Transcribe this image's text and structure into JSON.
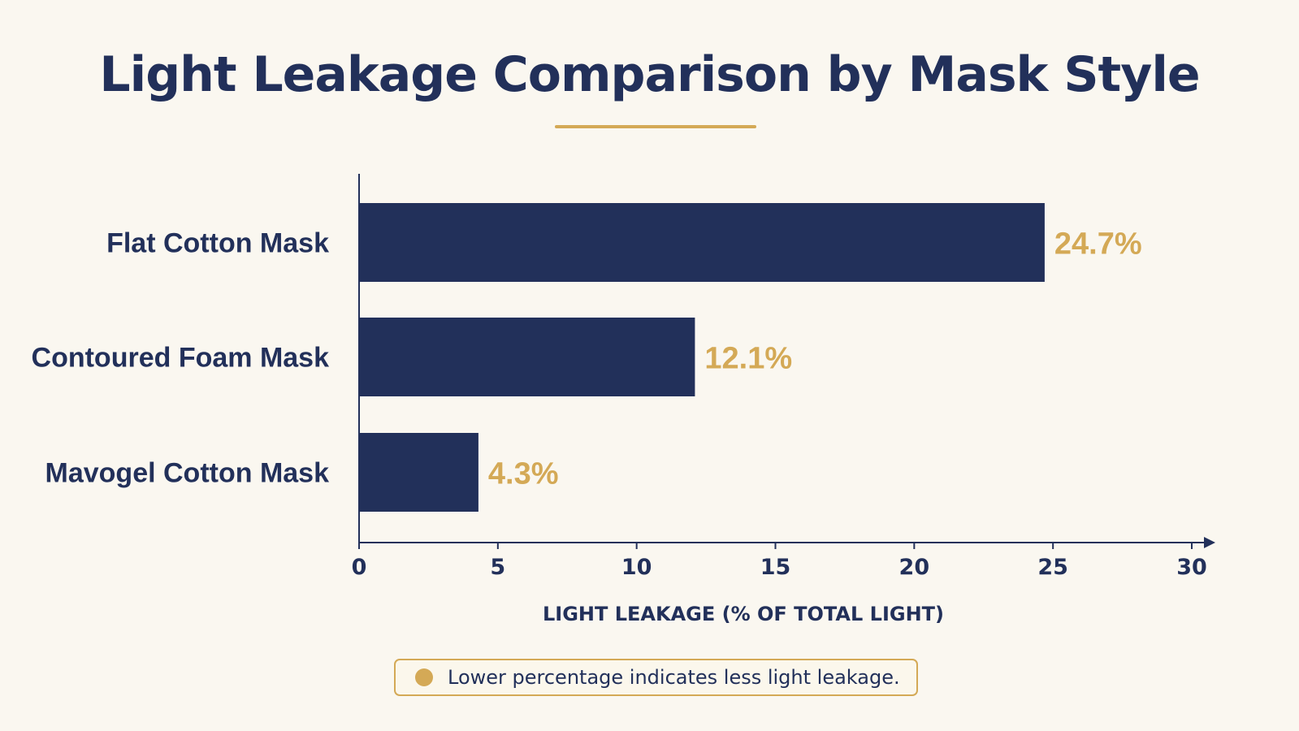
{
  "colors": {
    "background": "#faf7f0",
    "bar": "#22305a",
    "accent": "#d4a956",
    "text": "#22305a"
  },
  "chart_data": {
    "type": "bar",
    "orientation": "horizontal",
    "title": "Light Leakage Comparison by Mask Style",
    "xlabel": "LIGHT LEAKAGE (% OF TOTAL LIGHT)",
    "ylabel": "",
    "categories": [
      "Flat Cotton Mask",
      "Contoured Foam Mask",
      "Mavogel Cotton Mask"
    ],
    "values": [
      24.7,
      12.1,
      4.3
    ],
    "value_labels": [
      "24.7%",
      "12.1%",
      "4.3%"
    ],
    "xlim": [
      0,
      30
    ],
    "xticks": [
      0,
      5,
      10,
      15,
      20,
      25,
      30
    ],
    "grid": false,
    "legend": "none"
  },
  "note": {
    "text": "Lower percentage indicates less light leakage."
  }
}
